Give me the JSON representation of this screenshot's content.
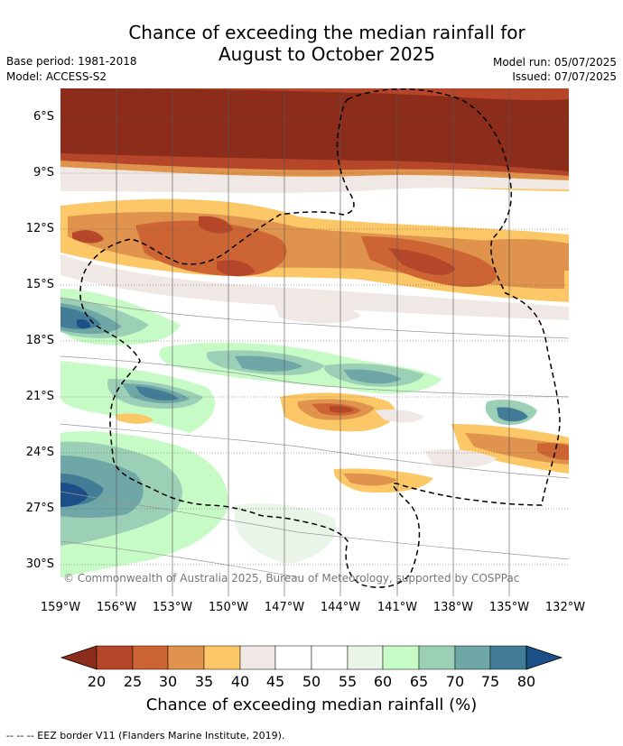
{
  "title_line1": "Chance of exceeding the median rainfall for",
  "title_line2": "August to October 2025",
  "meta": {
    "base_period": "Base period: 1981-2018",
    "model": "Model: ACCESS-S2",
    "model_run": "Model run: 05/07/2025",
    "issued": "Issued: 07/07/2025"
  },
  "map": {
    "lat_labels": [
      "6°S",
      "9°S",
      "12°S",
      "15°S",
      "18°S",
      "21°S",
      "24°S",
      "27°S",
      "30°S"
    ],
    "lon_labels": [
      "159°W",
      "156°W",
      "153°W",
      "150°W",
      "147°W",
      "144°W",
      "141°W",
      "138°W",
      "135°W",
      "132°W"
    ],
    "copyright": "© Commonwealth of Australia 2025, Bureau of Meteorology, supported by COSPPac"
  },
  "colorbar": {
    "ticks": [
      "20",
      "25",
      "30",
      "35",
      "40",
      "45",
      "50",
      "55",
      "60",
      "65",
      "70",
      "75",
      "80"
    ],
    "colors": [
      "#8c2d1b",
      "#b5462a",
      "#cd6433",
      "#e0934c",
      "#fcc766",
      "#efe8e5",
      "#ffffff",
      "#ffffff",
      "#e8f5e8",
      "#c7fbc6",
      "#9bd0b7",
      "#6fa7a6",
      "#437c97",
      "#1c4f88"
    ],
    "label": "Chance of exceeding median rainfall (%)"
  },
  "footer": "--  --  -- EEZ border V11 (Flanders Marine Institute, 2019)."
}
